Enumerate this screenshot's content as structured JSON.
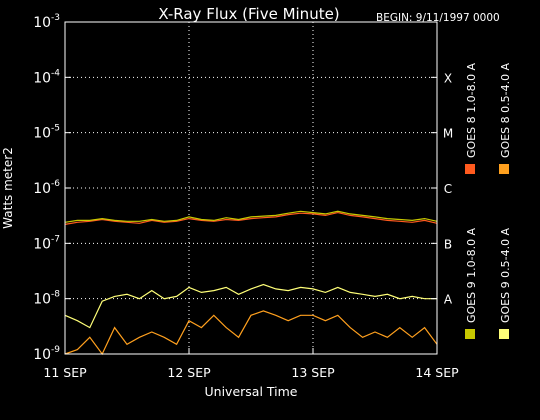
{
  "chart_data": {
    "type": "line",
    "title": "X-Ray Flux (Five Minute)",
    "begin_label": "BEGIN: 9/11/1997 0000",
    "xlabel": "Universal Time",
    "ylabel": "Watts meter2",
    "y_scale": "log",
    "ylim": [
      1e-09,
      0.001
    ],
    "xlim_days": [
      0,
      3
    ],
    "x_ticks": [
      {
        "label": "11 SEP",
        "value": 0
      },
      {
        "label": "12 SEP",
        "value": 1
      },
      {
        "label": "13 SEP",
        "value": 2
      },
      {
        "label": "14 SEP",
        "value": 3
      }
    ],
    "y_ticks": [
      {
        "base": "10",
        "exp": "-3",
        "value": -3
      },
      {
        "base": "10",
        "exp": "-4",
        "value": -4
      },
      {
        "base": "10",
        "exp": "-5",
        "value": -5
      },
      {
        "base": "10",
        "exp": "-6",
        "value": -6
      },
      {
        "base": "10",
        "exp": "-7",
        "value": -7
      },
      {
        "base": "10",
        "exp": "-8",
        "value": -8
      },
      {
        "base": "10",
        "exp": "-9",
        "value": -9
      }
    ],
    "flare_classes": [
      {
        "label": "X",
        "value": -4
      },
      {
        "label": "M",
        "value": -5
      },
      {
        "label": "C",
        "value": -6
      },
      {
        "label": "B",
        "value": -7
      },
      {
        "label": "A",
        "value": -8
      }
    ],
    "grid": true,
    "legend": [
      {
        "label": "GOES 8 1.0-8.0 A",
        "color": "#ff5a1e"
      },
      {
        "label": "GOES 8 0.5-4.0 A",
        "color": "#ffa01e"
      },
      {
        "label": "GOES 9 1.0-8.0 A",
        "color": "#c8c800"
      },
      {
        "label": "GOES 9 0.5-4.0 A",
        "color": "#ffff78"
      }
    ],
    "series": [
      {
        "name": "GOES 8 1.0-8.0 A",
        "color": "#ff5a1e",
        "x": [
          0,
          0.1,
          0.2,
          0.3,
          0.4,
          0.5,
          0.6,
          0.7,
          0.8,
          0.9,
          1.0,
          1.1,
          1.2,
          1.3,
          1.4,
          1.5,
          1.6,
          1.7,
          1.8,
          1.9,
          2.0,
          2.1,
          2.2,
          2.3,
          2.4,
          2.5,
          2.6,
          2.7,
          2.8,
          2.9,
          3.0
        ],
        "y": [
          2.2e-07,
          2.4e-07,
          2.5e-07,
          2.7e-07,
          2.5e-07,
          2.4e-07,
          2.3e-07,
          2.6e-07,
          2.4e-07,
          2.5e-07,
          2.8e-07,
          2.6e-07,
          2.5e-07,
          2.7e-07,
          2.6e-07,
          2.8e-07,
          2.9e-07,
          3e-07,
          3.3e-07,
          3.5e-07,
          3.4e-07,
          3.2e-07,
          3.6e-07,
          3.2e-07,
          3e-07,
          2.8e-07,
          2.6e-07,
          2.5e-07,
          2.4e-07,
          2.6e-07,
          2.3e-07
        ]
      },
      {
        "name": "GOES 8 0.5-4.0 A",
        "color": "#ffa01e",
        "x": [
          0,
          0.1,
          0.2,
          0.3,
          0.4,
          0.5,
          0.6,
          0.7,
          0.8,
          0.9,
          1.0,
          1.1,
          1.2,
          1.3,
          1.4,
          1.5,
          1.6,
          1.7,
          1.8,
          1.9,
          2.0,
          2.1,
          2.2,
          2.3,
          2.4,
          2.5,
          2.6,
          2.7,
          2.8,
          2.9,
          3.0
        ],
        "y": [
          1e-09,
          1.2e-09,
          2e-09,
          1e-09,
          3e-09,
          1.5e-09,
          2e-09,
          2.5e-09,
          2e-09,
          1.5e-09,
          4e-09,
          3e-09,
          5e-09,
          3e-09,
          2e-09,
          5e-09,
          6e-09,
          5e-09,
          4e-09,
          5e-09,
          5e-09,
          4e-09,
          5e-09,
          3e-09,
          2e-09,
          2.5e-09,
          2e-09,
          3e-09,
          2e-09,
          3e-09,
          1.5e-09
        ]
      },
      {
        "name": "GOES 9 1.0-8.0 A",
        "color": "#c8c800",
        "x": [
          0,
          0.1,
          0.2,
          0.3,
          0.4,
          0.5,
          0.6,
          0.7,
          0.8,
          0.9,
          1.0,
          1.1,
          1.2,
          1.3,
          1.4,
          1.5,
          1.6,
          1.7,
          1.8,
          1.9,
          2.0,
          2.1,
          2.2,
          2.3,
          2.4,
          2.5,
          2.6,
          2.7,
          2.8,
          2.9,
          3.0
        ],
        "y": [
          2.4e-07,
          2.6e-07,
          2.6e-07,
          2.8e-07,
          2.6e-07,
          2.5e-07,
          2.5e-07,
          2.7e-07,
          2.5e-07,
          2.6e-07,
          3e-07,
          2.7e-07,
          2.6e-07,
          2.9e-07,
          2.7e-07,
          3e-07,
          3.1e-07,
          3.2e-07,
          3.5e-07,
          3.8e-07,
          3.6e-07,
          3.4e-07,
          3.8e-07,
          3.4e-07,
          3.2e-07,
          3e-07,
          2.8e-07,
          2.7e-07,
          2.6e-07,
          2.8e-07,
          2.5e-07
        ]
      },
      {
        "name": "GOES 9 0.5-4.0 A",
        "color": "#ffff78",
        "x": [
          0,
          0.1,
          0.2,
          0.3,
          0.4,
          0.5,
          0.6,
          0.7,
          0.8,
          0.9,
          1.0,
          1.1,
          1.2,
          1.3,
          1.4,
          1.5,
          1.6,
          1.7,
          1.8,
          1.9,
          2.0,
          2.1,
          2.2,
          2.3,
          2.4,
          2.5,
          2.6,
          2.7,
          2.8,
          2.9,
          3.0
        ],
        "y": [
          5e-09,
          4e-09,
          3e-09,
          9e-09,
          1.1e-08,
          1.2e-08,
          1e-08,
          1.4e-08,
          1e-08,
          1.1e-08,
          1.6e-08,
          1.3e-08,
          1.4e-08,
          1.6e-08,
          1.2e-08,
          1.5e-08,
          1.8e-08,
          1.5e-08,
          1.4e-08,
          1.6e-08,
          1.5e-08,
          1.3e-08,
          1.6e-08,
          1.3e-08,
          1.2e-08,
          1.1e-08,
          1.2e-08,
          1e-08,
          1.1e-08,
          1e-08,
          1e-08
        ]
      }
    ]
  }
}
